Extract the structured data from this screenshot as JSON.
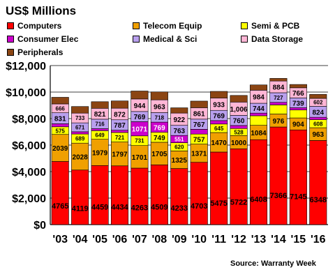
{
  "chart_data": {
    "type": "bar",
    "stacked": true,
    "title": "US$ Millions",
    "source": "Source: Warranty Week",
    "categories": [
      "'03",
      "'04",
      "'05",
      "'06",
      "'07",
      "'08",
      "'09",
      "'10",
      "'11",
      "'12",
      "'13",
      "'14",
      "'15",
      "'16"
    ],
    "ylim": [
      0,
      12000
    ],
    "yticks": [
      0,
      2000,
      4000,
      6000,
      8000,
      10000,
      12000
    ],
    "ytick_labels": [
      "$0",
      "$2,000",
      "$4,000",
      "$6,000",
      "$8,000",
      "$10,000",
      "$12,000"
    ],
    "grid": true,
    "legend_placement": "top",
    "series": [
      {
        "name": "Computers",
        "color": "#ff0000",
        "values": [
          4765,
          4119,
          4459,
          4434,
          4263,
          4509,
          4233,
          4703,
          5475,
          5722,
          6408,
          7366,
          7145,
          6348
        ],
        "labels": [
          "4765",
          "4119",
          "4459",
          "4434",
          "4263",
          "4509",
          "4233",
          "4703",
          "5475",
          "5722",
          "6408",
          "7366",
          "7145",
          "6348"
        ]
      },
      {
        "name": "Telecom Equip",
        "color": "#f0a000",
        "values": [
          2039,
          2028,
          1979,
          1797,
          1701,
          1705,
          1325,
          1371,
          1470,
          1000,
          1084,
          976,
          904,
          963
        ],
        "labels": [
          "2039",
          "2028",
          "1979",
          "1797",
          "1701",
          "1705",
          "1325",
          "1371",
          "1470",
          "1000",
          "1084",
          "976",
          "904",
          "963"
        ]
      },
      {
        "name": "Semi & PCB",
        "color": "#ffff00",
        "values": [
          575,
          689,
          649,
          721,
          731,
          749,
          620,
          757,
          645,
          528,
          720,
          690,
          600,
          608
        ],
        "labels": [
          "575",
          "689",
          "649",
          "721",
          "731",
          "749",
          "620",
          "757",
          "645",
          "528",
          "",
          "",
          "",
          "608"
        ]
      },
      {
        "name": "Consumer Elec",
        "color": "#cc00cc",
        "values": [
          230,
          170,
          150,
          170,
          1071,
          769,
          551,
          360,
          260,
          230,
          200,
          190,
          170,
          180
        ],
        "labels": [
          "",
          "",
          "",
          "",
          "1071",
          "769",
          "551",
          "",
          "",
          "",
          "",
          "",
          "",
          ""
        ]
      },
      {
        "name": "Medical & Sci",
        "color": "#b9a0ee",
        "values": [
          831,
          671,
          716,
          787,
          769,
          718,
          763,
          767,
          769,
          760,
          744,
          727,
          739,
          824
        ],
        "labels": [
          "831",
          "671",
          "716",
          "787",
          "769",
          "718",
          "763",
          "767",
          "769",
          "760",
          "744",
          "727",
          "739",
          "824"
        ]
      },
      {
        "name": "Data Storage",
        "color": "#ffb6d5",
        "values": [
          666,
          733,
          821,
          872,
          944,
          963,
          922,
          861,
          933,
          1006,
          984,
          884,
          766,
          602
        ],
        "labels": [
          "666",
          "733",
          "821",
          "872",
          "944",
          "963",
          "922",
          "861",
          "933",
          "1,006",
          "984",
          "884",
          "766",
          "602"
        ]
      },
      {
        "name": "Peripherals",
        "color": "#8b4513",
        "values": [
          500,
          500,
          500,
          550,
          600,
          600,
          400,
          500,
          500,
          500,
          400,
          200,
          250,
          300
        ],
        "labels": [
          "",
          "",
          "",
          "",
          "",
          "",
          "",
          "",
          "",
          "",
          "",
          "",
          "",
          ""
        ]
      }
    ]
  }
}
